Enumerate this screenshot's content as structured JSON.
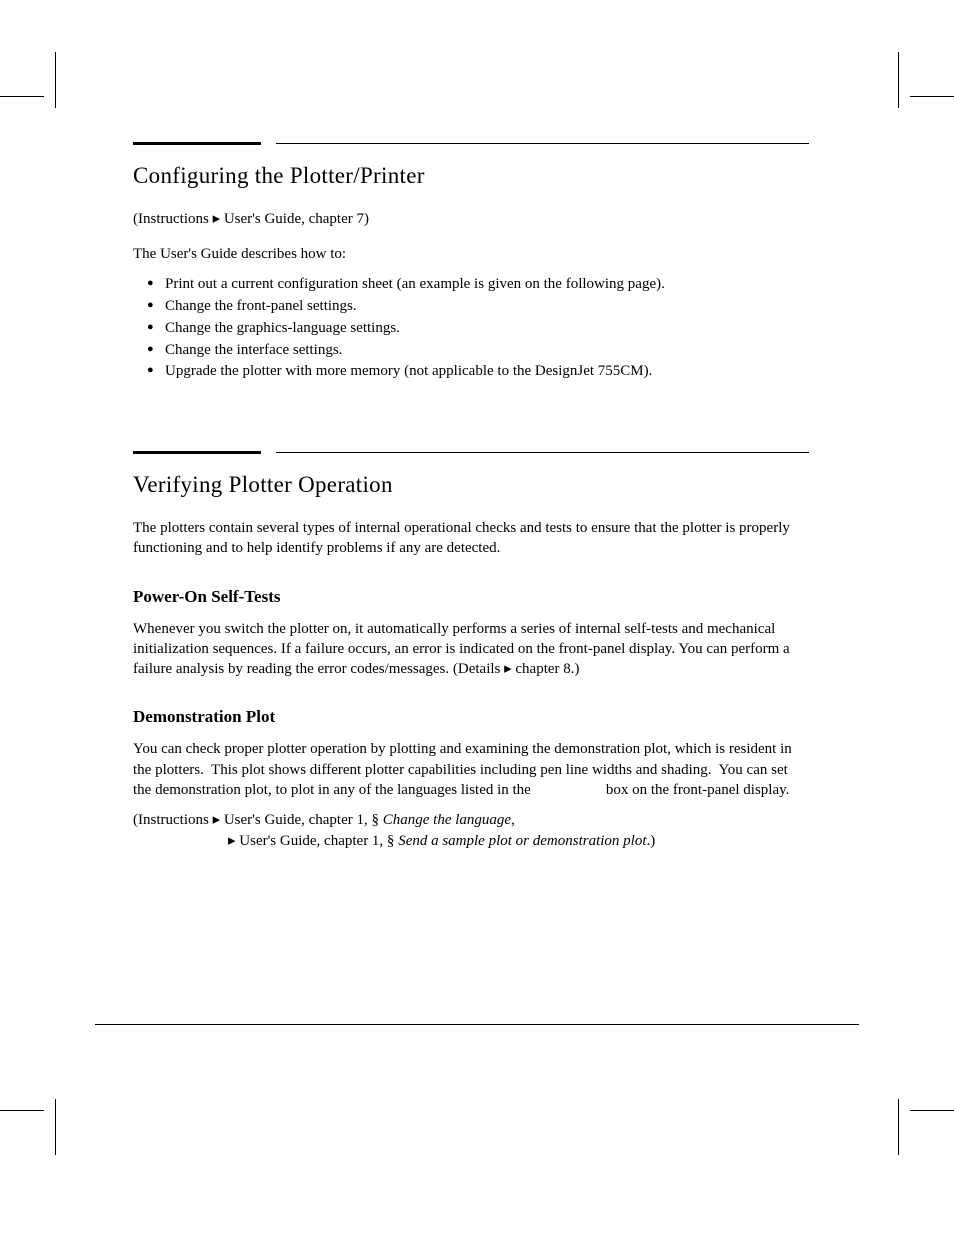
{
  "colors": {
    "text": "#000000",
    "background": "#ffffff",
    "rule": "#000000"
  },
  "typography": {
    "heading_fontsize": 23,
    "subheading_fontsize": 17,
    "body_fontsize": 15,
    "font_family": "Georgia, 'Times New Roman', serif"
  },
  "section1": {
    "heading": "Configuring the Plotter/Printer",
    "instruction_ref": "(Instructions ▸ User's Guide, chapter 7)",
    "intro": "The User's Guide describes how to:",
    "bullets": [
      "Print out a current configuration sheet (an example is given on the following page).",
      "Change the front-panel settings.",
      "Change the graphics-language settings.",
      "Change the interface settings.",
      "Upgrade the plotter with more memory (not applicable to the DesignJet 755CM)."
    ]
  },
  "section2": {
    "heading": "Verifying Plotter Operation",
    "intro": "The plotters contain several types of internal operational checks and tests to ensure that the plotter is properly functioning and to help identify problems if any are detected.",
    "sub1": {
      "heading": "Power-On Self-Tests",
      "text": "Whenever you switch the plotter on, it automatically performs a series of internal self-tests and mechanical initialization sequences. If a failure occurs, an error is indicated on the front-panel display. You can perform a failure analysis by reading the error codes/messages. (Details ▸ chapter 8.)"
    },
    "sub2": {
      "heading": "Demonstration Plot",
      "text": "You can check proper plotter operation by plotting and examining the demonstration plot, which is resident in the plotters.  This plot shows different plotter capabilities including pen line widths and shading.  You can set the demonstration plot, to plot in any of the languages listed in the                    box on the front-panel display.",
      "instr_line1_prefix": "(Instructions  ▸ User's Guide, chapter 1, § ",
      "instr_line1_italic": "Change the language,",
      "instr_line2_prefix": "▸ User's Guide, chapter 1, § ",
      "instr_line2_italic": "Send a sample plot or demonstration plot",
      "instr_line2_suffix": ".)"
    }
  }
}
